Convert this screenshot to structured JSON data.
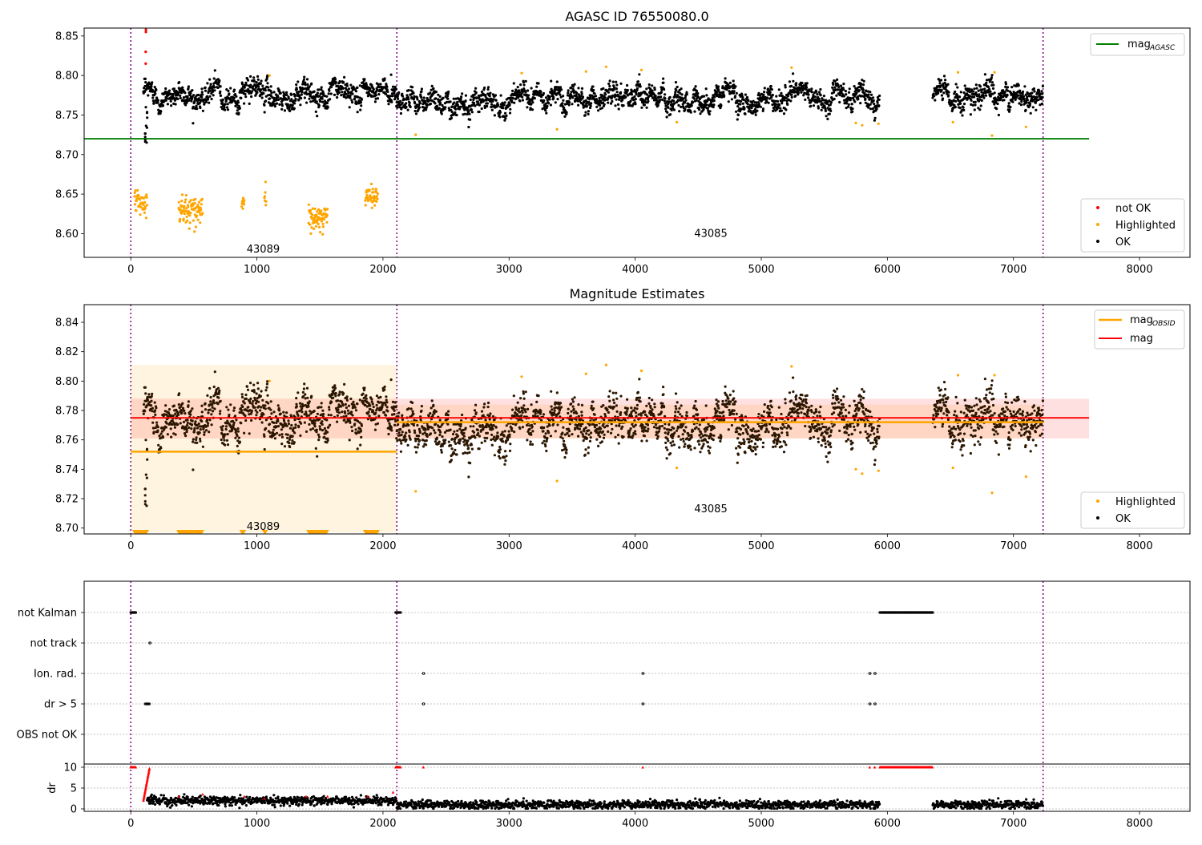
{
  "figure": {
    "background": "#ffffff"
  },
  "colors": {
    "ok": "#000000",
    "highlighted": "#ffa500",
    "not_ok": "#ff0000",
    "agasc": "#008000",
    "mag": "#ff0000",
    "mag_obsid": "#ffa500",
    "obs_boundary": "#800080",
    "dark_points": "#2b1600"
  },
  "x_ticks": [
    "0",
    "1000",
    "2000",
    "3000",
    "4000",
    "5000",
    "6000",
    "7000",
    "8000"
  ],
  "chart_data": [
    {
      "type": "scatter",
      "title": "AGASC ID 76550080.0",
      "xlim": [
        -370,
        8400
      ],
      "ylim": [
        8.57,
        8.86
      ],
      "y_ticks": [
        "8.60",
        "8.65",
        "8.70",
        "8.75",
        "8.80",
        "8.85"
      ],
      "grid": false,
      "legend_lines_location": "upper right",
      "legend_points_location": "lower right",
      "mag_agasc": 8.72,
      "obs_boundaries": [
        0,
        2110,
        7235
      ],
      "obsids": [
        {
          "label": "43089",
          "x": 1050,
          "y": 8.58
        },
        {
          "label": "43085",
          "x": 4600,
          "y": 8.6
        }
      ],
      "legend_lines": [
        {
          "name": "mag",
          "sub": "AGASC",
          "color": "#008000"
        }
      ],
      "legend_points": [
        {
          "name": "not OK",
          "color": "#ff0000"
        },
        {
          "name": "Highlighted",
          "color": "#ffa500"
        },
        {
          "name": "OK",
          "color": "#000000"
        }
      ],
      "series": [
        {
          "name": "OK",
          "segments": [
            [
              100,
              2110,
              8.777
            ],
            [
              2110,
              5940,
              8.772
            ],
            [
              6360,
              7235,
              8.772
            ]
          ]
        },
        {
          "name": "Highlighted",
          "clusters": [
            [
              30,
              130,
              8.64
            ],
            [
              380,
              570,
              8.63
            ],
            [
              880,
              900,
              8.64
            ],
            [
              1060,
              1075,
              8.645
            ],
            [
              1410,
              1560,
              8.62
            ],
            [
              1860,
              1960,
              8.648
            ]
          ]
        },
        {
          "name": "not OK",
          "points": [
            [
              120,
              8.858
            ],
            [
              120,
              8.855
            ],
            [
              118,
              8.83
            ],
            [
              118,
              8.815
            ]
          ]
        }
      ]
    },
    {
      "type": "scatter",
      "title": "Magnitude Estimates",
      "xlim": [
        -370,
        8400
      ],
      "ylim": [
        8.696,
        8.852
      ],
      "y_ticks": [
        "8.70",
        "8.72",
        "8.74",
        "8.76",
        "8.78",
        "8.80",
        "8.82",
        "8.84"
      ],
      "grid": false,
      "mag": 8.775,
      "mag_band": [
        8.761,
        8.788
      ],
      "mag_obsid": [
        {
          "x0": 0,
          "x1": 2110,
          "value": 8.752,
          "band": [
            8.697,
            8.811
          ]
        },
        {
          "x0": 2110,
          "x1": 7235,
          "value": 8.772,
          "band": [
            8.761,
            8.784
          ]
        }
      ],
      "obs_boundaries": [
        0,
        2110,
        7235
      ],
      "obsids": [
        {
          "label": "43089",
          "x": 1050,
          "y": 8.701
        },
        {
          "label": "43085",
          "x": 4600,
          "y": 8.713
        }
      ],
      "legend_lines": [
        {
          "name": "mag",
          "sub": "OBSID",
          "color": "#ffa500"
        },
        {
          "name": "mag",
          "sub": "",
          "color": "#ff0000"
        }
      ],
      "legend_points": [
        {
          "name": "Highlighted",
          "color": "#ffa500"
        },
        {
          "name": "OK",
          "color": "#000000"
        }
      ]
    },
    {
      "type": "scatter",
      "title": "",
      "xlim": [
        -370,
        8400
      ],
      "categories": [
        "not Kalman",
        "not track",
        "Ion. rad.",
        "dr > 5",
        "OBS not OK"
      ],
      "y_ticks_dr": [
        "0",
        "5",
        "10"
      ],
      "ylabel": "dr",
      "grid": "horizontal",
      "obs_boundaries": [
        0,
        2110,
        7235
      ],
      "flags": {
        "not Kalman": [
          [
            0,
            40
          ],
          [
            2100,
            2140
          ],
          [
            5940,
            6360
          ]
        ],
        "not track": [
          [
            150,
            155
          ]
        ],
        "Ion. rad.": [
          [
            2320,
            2325
          ],
          [
            4060,
            4065
          ],
          [
            5860,
            5865
          ],
          [
            5900,
            5905
          ]
        ],
        "dr > 5": [
          [
            115,
            150
          ],
          [
            2320,
            2325
          ],
          [
            4060,
            4065
          ],
          [
            5860,
            5865
          ],
          [
            5900,
            5905
          ]
        ],
        "OBS not OK": []
      },
      "dr": {
        "baseline_obs1": 2.0,
        "baseline_obs2": 1.0,
        "saturation": 10
      }
    }
  ]
}
